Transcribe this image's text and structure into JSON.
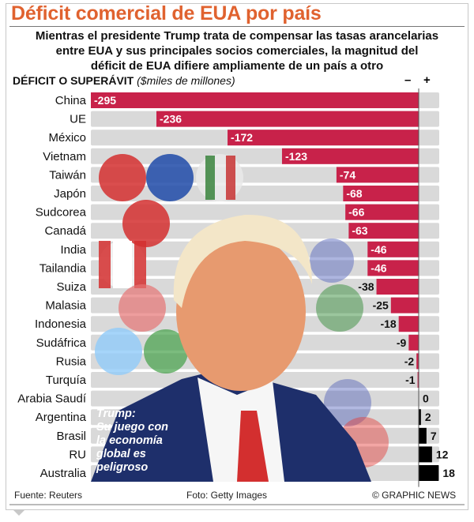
{
  "header": {
    "title": "Déficit comercial de EUA por país",
    "subtitle_lines": [
      "Mientras el presidente Trump trata de compensar las tasas arancelarias",
      "entre EUA y sus principales socios comerciales, la magnitud del",
      "déficit de EUA difiere ampliamente de un país a otro"
    ]
  },
  "photo_caption": [
    "Trump:",
    "Su juego con",
    "la economía",
    "global es",
    "peligroso"
  ],
  "footer": {
    "source": "Fuente: Reuters",
    "photo": "Foto: Getty Images",
    "credit": "© GRAPHIC NEWS"
  },
  "chart_data": {
    "type": "bar",
    "orientation": "horizontal",
    "title": "DÉFICIT O SUPERÁVIT",
    "unit_label": "($miles de millones)",
    "sign_labels": {
      "negative": "–",
      "positive": "+"
    },
    "categories": [
      "China",
      "UE",
      "México",
      "Vietnam",
      "Taiwán",
      "Japón",
      "Sudcorea",
      "Canadá",
      "India",
      "Tailandia",
      "Suiza",
      "Malasia",
      "Indonesia",
      "Sudáfrica",
      "Rusia",
      "Turquía",
      "Arabia Saudí",
      "Argentina",
      "Brasil",
      "RU",
      "Australia"
    ],
    "values": [
      -295,
      -236,
      -172,
      -123,
      -74,
      -68,
      -66,
      -63,
      -46,
      -46,
      -38,
      -25,
      -18,
      -9,
      -2,
      -1,
      0,
      2,
      7,
      12,
      18
    ],
    "xlim": [
      -295,
      18
    ],
    "colors": {
      "negative": "#c8224a",
      "positive": "#000000",
      "track": "#d9d9d9",
      "title": "#e0622f"
    }
  }
}
